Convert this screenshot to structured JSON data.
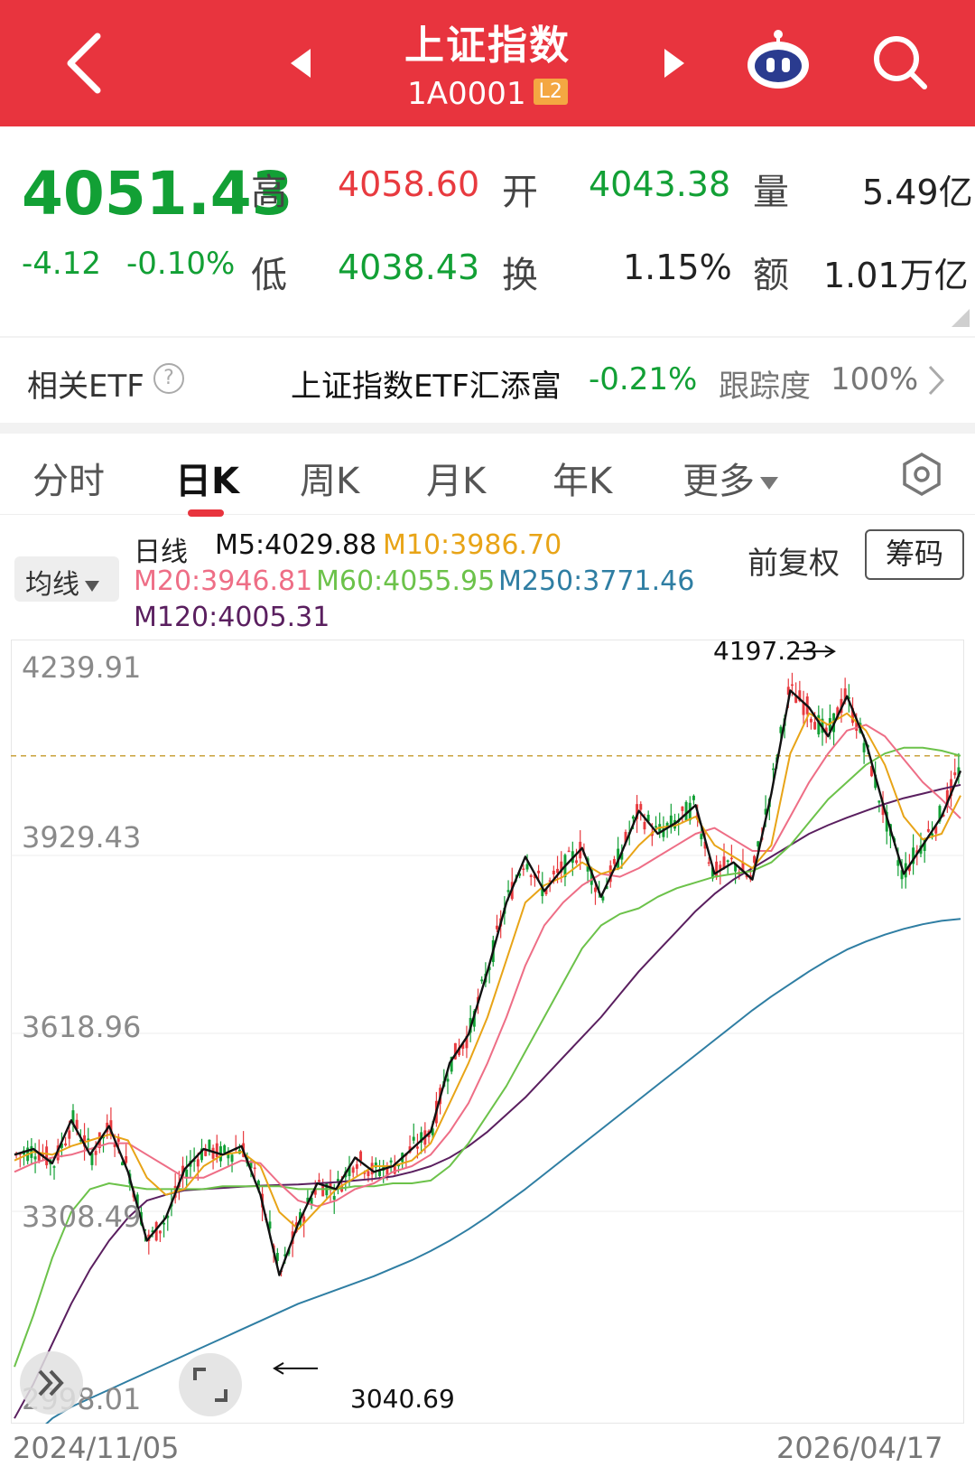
{
  "header": {
    "title": "上证指数",
    "code": "1A0001",
    "badge": "L2"
  },
  "quote": {
    "price": "4051.43",
    "change": "-4.12",
    "change_pct": "-0.10%",
    "high_label": "高",
    "high": "4058.60",
    "low_label": "低",
    "low": "4038.43",
    "open_label": "开",
    "open": "4043.38",
    "turnover_label": "换",
    "turnover": "1.15%",
    "volume_label": "量",
    "volume": "5.49亿",
    "amount_label": "额",
    "amount": "1.01万亿"
  },
  "etf": {
    "label": "相关ETF",
    "help": "?",
    "name": "上证指数ETF汇添富",
    "change": "-0.21%",
    "track_label": "跟踪度",
    "track_value": "100%"
  },
  "tabs": [
    {
      "label": "分时"
    },
    {
      "label": "日K"
    },
    {
      "label": "周K"
    },
    {
      "label": "月K"
    },
    {
      "label": "年K"
    },
    {
      "label": "更多"
    }
  ],
  "indicators": {
    "ma_selector": "均线",
    "period": "日线",
    "m5": "M5:4029.88",
    "m10": "M10:3986.70",
    "m20": "M20:3946.81",
    "m60": "M60:4055.95",
    "m250": "M250:3771.46",
    "m120": "M120:4005.31",
    "adjust": "前复权",
    "chip_button": "筹码"
  },
  "colors": {
    "up": "#e83a3f",
    "down": "#12a035",
    "m5": "#111111",
    "m10": "#e8a417",
    "m20": "#ee6e86",
    "m60": "#6cc24a",
    "m120": "#5a1f5f",
    "m250": "#2f7ea3"
  },
  "chart_data": {
    "type": "candlestick",
    "y_ticks": [
      "4239.91",
      "3929.43",
      "3618.96",
      "3308.49",
      "2998.01"
    ],
    "y_range": [
      2998.01,
      4239.91
    ],
    "reference_line": 4055.95,
    "annotations": {
      "high": {
        "label": "4197.23",
        "value": 4197.23
      },
      "low": {
        "label": "3040.69",
        "value": 3040.69
      }
    },
    "x_start": "2024/11/05",
    "x_end": "2026/04/17",
    "ma_series": {
      "m5": [
        3360,
        3370,
        3345,
        3420,
        3360,
        3410,
        3330,
        3210,
        3250,
        3335,
        3370,
        3360,
        3375,
        3290,
        3150,
        3240,
        3310,
        3300,
        3355,
        3330,
        3340,
        3370,
        3400,
        3520,
        3570,
        3680,
        3800,
        3880,
        3820,
        3860,
        3895,
        3810,
        3880,
        3960,
        3920,
        3940,
        3970,
        3850,
        3870,
        3840,
        3990,
        4170,
        4140,
        4090,
        4160,
        4080,
        3960,
        3850,
        3900,
        3950,
        4029.88
      ],
      "m10": [
        3350,
        3365,
        3360,
        3375,
        3385,
        3395,
        3385,
        3320,
        3290,
        3300,
        3340,
        3360,
        3365,
        3340,
        3260,
        3230,
        3265,
        3300,
        3320,
        3340,
        3340,
        3350,
        3380,
        3450,
        3520,
        3600,
        3700,
        3800,
        3830,
        3845,
        3870,
        3850,
        3860,
        3900,
        3930,
        3935,
        3950,
        3900,
        3880,
        3860,
        3900,
        4060,
        4130,
        4110,
        4130,
        4100,
        4040,
        3950,
        3910,
        3920,
        3986.7
      ],
      "m20": [
        3330,
        3345,
        3355,
        3360,
        3370,
        3380,
        3380,
        3360,
        3340,
        3320,
        3320,
        3335,
        3350,
        3345,
        3310,
        3280,
        3270,
        3280,
        3300,
        3310,
        3330,
        3340,
        3360,
        3400,
        3450,
        3520,
        3600,
        3690,
        3760,
        3800,
        3830,
        3850,
        3845,
        3860,
        3880,
        3900,
        3920,
        3930,
        3910,
        3890,
        3890,
        3950,
        4010,
        4060,
        4100,
        4110,
        4090,
        4050,
        4010,
        3980,
        3946.81
      ],
      "m60": [
        2990,
        3080,
        3180,
        3260,
        3300,
        3310,
        3305,
        3300,
        3300,
        3300,
        3300,
        3305,
        3305,
        3305,
        3305,
        3300,
        3300,
        3300,
        3305,
        3305,
        3310,
        3310,
        3315,
        3340,
        3380,
        3430,
        3480,
        3540,
        3600,
        3660,
        3720,
        3760,
        3780,
        3790,
        3810,
        3825,
        3835,
        3845,
        3850,
        3855,
        3870,
        3900,
        3940,
        3980,
        4010,
        4040,
        4060,
        4070,
        4070,
        4065,
        4055.95
      ],
      "m120": [
        2900,
        2960,
        3030,
        3100,
        3160,
        3210,
        3250,
        3280,
        3290,
        3298,
        3300,
        3302,
        3304,
        3306,
        3307,
        3308,
        3310,
        3312,
        3315,
        3318,
        3322,
        3330,
        3340,
        3355,
        3375,
        3400,
        3430,
        3460,
        3495,
        3530,
        3565,
        3600,
        3640,
        3680,
        3715,
        3750,
        3785,
        3815,
        3840,
        3860,
        3880,
        3900,
        3920,
        3935,
        3948,
        3960,
        3972,
        3982,
        3990,
        3998,
        4005.31
      ],
      "m250": [
        2840,
        2870,
        2900,
        2920,
        2935,
        2950,
        2965,
        2980,
        2995,
        3010,
        3025,
        3040,
        3055,
        3070,
        3085,
        3100,
        3112,
        3124,
        3136,
        3148,
        3162,
        3176,
        3192,
        3210,
        3230,
        3252,
        3276,
        3300,
        3326,
        3352,
        3378,
        3404,
        3430,
        3456,
        3482,
        3508,
        3534,
        3560,
        3586,
        3612,
        3636,
        3658,
        3680,
        3700,
        3718,
        3732,
        3744,
        3754,
        3762,
        3768,
        3771.46
      ]
    }
  }
}
